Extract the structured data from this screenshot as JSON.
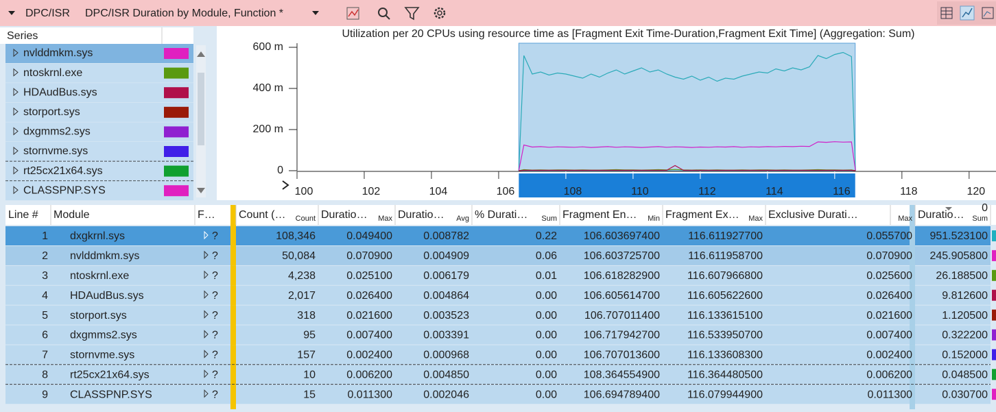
{
  "header": {
    "section": "DPC/ISR",
    "title": "DPC/ISR Duration by Module, Function *"
  },
  "series_panel": {
    "heading": "Series",
    "items": [
      {
        "name": "nvlddmkm.sys",
        "color": "#e020c0"
      },
      {
        "name": "ntoskrnl.exe",
        "color": "#5a9a10"
      },
      {
        "name": "HDAudBus.sys",
        "color": "#b0104a"
      },
      {
        "name": "storport.sys",
        "color": "#9a1a08"
      },
      {
        "name": "dxgmms2.sys",
        "color": "#9020d0"
      },
      {
        "name": "stornvme.sys",
        "color": "#4020e8"
      },
      {
        "name": "rt25cx21x64.sys",
        "color": "#10a030"
      },
      {
        "name": "CLASSPNP.SYS",
        "color": "#e020c0"
      }
    ]
  },
  "chart_data": {
    "type": "line",
    "title": "Utilization per 20 CPUs using resource time as [Fragment Exit Time-Duration,Fragment Exit Time] (Aggregation: Sum)",
    "x": [
      106.6,
      106.75,
      107,
      107.25,
      107.5,
      107.75,
      108,
      108.25,
      108.5,
      108.75,
      109,
      109.25,
      109.5,
      109.75,
      110,
      110.25,
      110.5,
      110.75,
      111,
      111.25,
      111.5,
      111.75,
      112,
      112.25,
      112.5,
      112.75,
      113,
      113.25,
      113.5,
      113.75,
      114,
      114.25,
      114.5,
      114.75,
      115,
      115.25,
      115.5,
      115.75,
      116,
      116.25,
      116.5,
      116.62
    ],
    "series": [
      {
        "color": "#2aaab8",
        "values": [
          0,
          560,
          470,
          480,
          465,
          475,
          470,
          460,
          450,
          470,
          455,
          475,
          490,
          470,
          485,
          500,
          480,
          490,
          470,
          455,
          445,
          460,
          440,
          455,
          435,
          450,
          445,
          460,
          470,
          480,
          475,
          495,
          485,
          500,
          490,
          505,
          560,
          545,
          565,
          575,
          555,
          0
        ]
      },
      {
        "color": "#d020c8",
        "values": [
          0,
          125,
          115,
          117,
          114,
          116,
          115,
          114,
          116,
          113,
          115,
          117,
          114,
          116,
          115,
          113,
          115,
          117,
          114,
          116,
          115,
          113,
          115,
          114,
          116,
          115,
          117,
          114,
          116,
          115,
          117,
          116,
          118,
          117,
          119,
          118,
          140,
          138,
          141,
          139,
          140,
          0
        ]
      },
      {
        "color": "#5a9a10",
        "values": [
          0,
          5,
          3,
          4,
          3,
          4,
          4,
          3,
          4,
          3,
          3,
          4,
          5,
          4,
          4,
          3,
          4,
          5,
          4,
          6,
          4,
          3,
          4,
          3,
          4,
          3,
          3,
          4,
          3,
          4,
          4,
          3,
          4,
          3,
          3,
          4,
          5,
          4,
          4,
          3,
          4,
          0
        ]
      },
      {
        "color": "#b0104a",
        "values": [
          0,
          2,
          2,
          2,
          2,
          2,
          2,
          2,
          2,
          2,
          2,
          2,
          2,
          2,
          2,
          2,
          2,
          2,
          2,
          25,
          2,
          2,
          2,
          2,
          2,
          2,
          2,
          2,
          2,
          2,
          2,
          2,
          2,
          2,
          2,
          2,
          2,
          2,
          2,
          2,
          2,
          0
        ]
      }
    ],
    "xlim": [
      100,
      120.8
    ],
    "xticks": [
      100,
      102,
      104,
      106,
      108,
      110,
      112,
      114,
      116,
      118,
      120
    ],
    "ylim": [
      0,
      620
    ],
    "yticks": [
      {
        "value": 600,
        "label": "600 m"
      },
      {
        "value": 400,
        "label": "400 m"
      },
      {
        "value": 200,
        "label": "200 m"
      },
      0
    ],
    "selection": [
      106.6,
      116.61
    ]
  },
  "table": {
    "columns": [
      {
        "label": "Line #"
      },
      {
        "label": "Module"
      },
      {
        "label": "F…"
      },
      {
        "label": "Count (…",
        "agg": "Count"
      },
      {
        "label": "Duratio…",
        "agg": "Max"
      },
      {
        "label": "Duratio…",
        "agg": "Avg"
      },
      {
        "label": "% Durati…",
        "agg": "Sum"
      },
      {
        "label": "Fragment En…",
        "agg": "Min"
      },
      {
        "label": "Fragment Ex…",
        "agg": "Max"
      },
      {
        "label": "Exclusive Durati…",
        "agg": "Max"
      },
      {
        "label": "Duratio…",
        "agg": "Sum",
        "sort_rank": 0
      }
    ],
    "rows": [
      [
        1,
        "dxgkrnl.sys",
        "?",
        "108,346",
        "0.049400",
        "0.008782",
        "0.22",
        "106.603697400",
        "116.611927700",
        "0.055700",
        "951.523100"
      ],
      [
        2,
        "nvlddmkm.sys",
        "?",
        "50,084",
        "0.070900",
        "0.004909",
        "0.06",
        "106.603725700",
        "116.611958700",
        "0.070900",
        "245.905800"
      ],
      [
        3,
        "ntoskrnl.exe",
        "?",
        "4,238",
        "0.025100",
        "0.006179",
        "0.01",
        "106.618282900",
        "116.607966800",
        "0.025600",
        "26.188500"
      ],
      [
        4,
        "HDAudBus.sys",
        "?",
        "2,017",
        "0.026400",
        "0.004864",
        "0.00",
        "106.605614700",
        "116.605622600",
        "0.026400",
        "9.812600"
      ],
      [
        5,
        "storport.sys",
        "?",
        "318",
        "0.021600",
        "0.003523",
        "0.00",
        "106.707011400",
        "116.133615100",
        "0.021600",
        "1.120500"
      ],
      [
        6,
        "dxgmms2.sys",
        "?",
        "95",
        "0.007400",
        "0.003391",
        "0.00",
        "106.717942700",
        "116.533950700",
        "0.007400",
        "0.322200"
      ],
      [
        7,
        "stornvme.sys",
        "?",
        "157",
        "0.002400",
        "0.000968",
        "0.00",
        "106.707013600",
        "116.133608300",
        "0.002400",
        "0.152000"
      ],
      [
        8,
        "rt25cx21x64.sys",
        "?",
        "10",
        "0.006200",
        "0.004850",
        "0.00",
        "108.364554900",
        "116.364480500",
        "0.006200",
        "0.048500"
      ],
      [
        9,
        "CLASSPNP.SYS",
        "?",
        "15",
        "0.011300",
        "0.002046",
        "0.00",
        "106.694789400",
        "116.079944900",
        "0.011300",
        "0.030700"
      ]
    ],
    "swatch_colors": [
      "#20b0c0",
      "#e020c0",
      "#5a9a10",
      "#b0104a",
      "#9a1a08",
      "#9020d0",
      "#4020e8",
      "#10a030",
      "#e020c0"
    ]
  }
}
